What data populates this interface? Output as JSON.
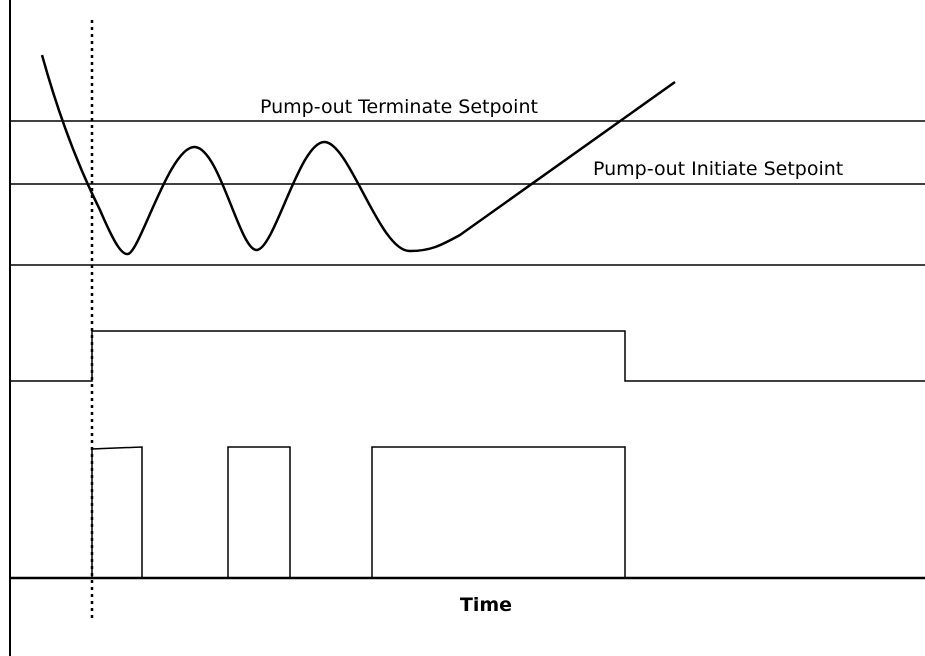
{
  "labels": {
    "terminate": "Pump-out Terminate Setpoint",
    "initiate": "Pump-out Initiate Setpoint",
    "axis": "Time"
  }
}
